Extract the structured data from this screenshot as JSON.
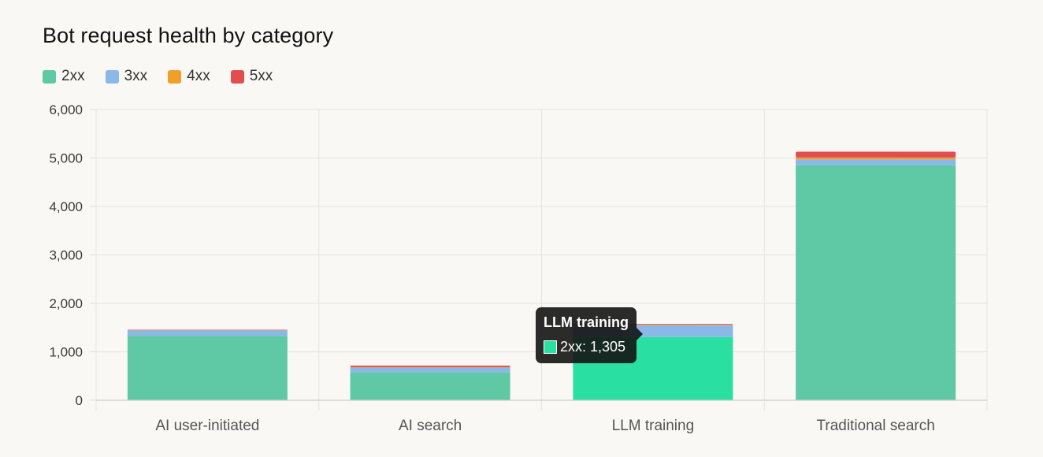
{
  "chart_data": {
    "type": "bar",
    "stacked": true,
    "title": "Bot request health by category",
    "xlabel": "",
    "ylabel": "",
    "ylim": [
      0,
      6000
    ],
    "yticks": [
      "0",
      "1,000",
      "2,000",
      "3,000",
      "4,000",
      "5,000",
      "6,000"
    ],
    "ytick_values": [
      0,
      1000,
      2000,
      3000,
      4000,
      5000,
      6000
    ],
    "grid": true,
    "legend_position": "top-left",
    "categories": [
      "AI user-initiated",
      "AI search",
      "LLM training",
      "Traditional search"
    ],
    "series": [
      {
        "name": "2xx",
        "color": "#5ec9a4",
        "values": [
          1330,
          570,
          1305,
          4850
        ]
      },
      {
        "name": "3xx",
        "color": "#8ab8e8",
        "values": [
          115,
          105,
          245,
          120
        ]
      },
      {
        "name": "4xx",
        "color": "#f0a02a",
        "values": [
          5,
          10,
          10,
          40
        ]
      },
      {
        "name": "5xx",
        "color": "#e04e4e",
        "values": [
          5,
          30,
          15,
          120
        ]
      }
    ],
    "highlight": {
      "category_index": 2,
      "series_index": 0,
      "color": "#29e0a2"
    },
    "tooltip": {
      "title": "LLM training",
      "label": "2xx: 1,305"
    }
  }
}
